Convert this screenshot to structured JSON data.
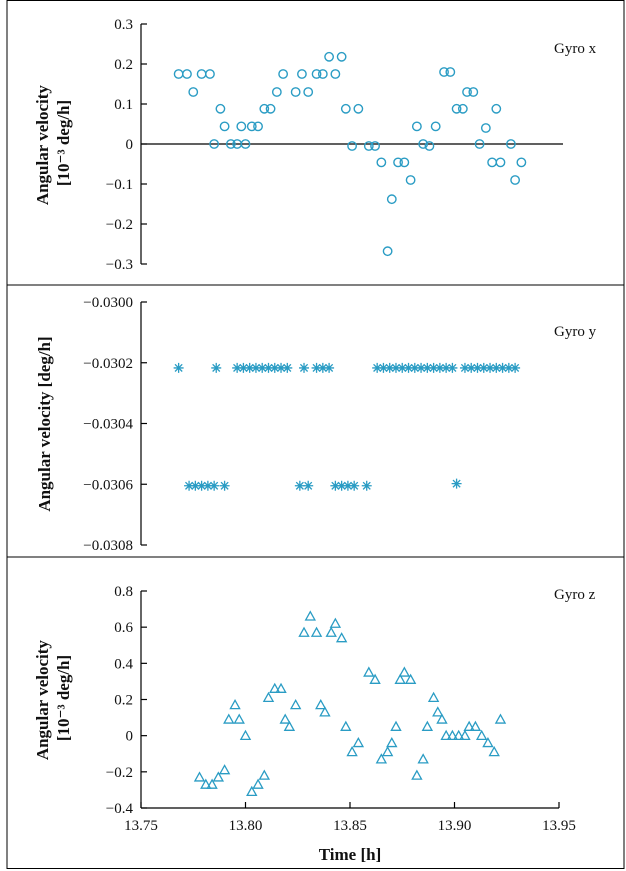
{
  "marker_color": "#2a9cc4",
  "chart_data": [
    {
      "type": "scatter",
      "panel_name": "Gyro x",
      "ylabel_lines": [
        "Angular velocity",
        "[10⁻³ deg/h]"
      ],
      "ylim": [
        -0.3,
        0.3
      ],
      "yticks": [
        "0.3",
        "0.2",
        "0.1",
        "0",
        "−0.1",
        "−0.2",
        "−0.3"
      ],
      "yticks_values": [
        0.3,
        0.2,
        0.1,
        0,
        -0.1,
        -0.2,
        -0.3
      ],
      "xlim": [
        13.75,
        13.95
      ],
      "zero_line": true,
      "marker": "circle",
      "points": [
        [
          13.768,
          0.175
        ],
        [
          13.772,
          0.175
        ],
        [
          13.775,
          0.13
        ],
        [
          13.779,
          0.175
        ],
        [
          13.783,
          0.175
        ],
        [
          13.785,
          0.0
        ],
        [
          13.788,
          0.088
        ],
        [
          13.79,
          0.044
        ],
        [
          13.793,
          0.0
        ],
        [
          13.796,
          0.0
        ],
        [
          13.798,
          0.044
        ],
        [
          13.8,
          0.0
        ],
        [
          13.803,
          0.044
        ],
        [
          13.806,
          0.044
        ],
        [
          13.809,
          0.088
        ],
        [
          13.812,
          0.088
        ],
        [
          13.815,
          0.13
        ],
        [
          13.818,
          0.175
        ],
        [
          13.824,
          0.13
        ],
        [
          13.827,
          0.175
        ],
        [
          13.83,
          0.13
        ],
        [
          13.834,
          0.175
        ],
        [
          13.837,
          0.175
        ],
        [
          13.84,
          0.218
        ],
        [
          13.843,
          0.175
        ],
        [
          13.846,
          0.218
        ],
        [
          13.848,
          0.088
        ],
        [
          13.851,
          -0.005
        ],
        [
          13.854,
          0.088
        ],
        [
          13.859,
          -0.005
        ],
        [
          13.862,
          -0.005
        ],
        [
          13.865,
          -0.046
        ],
        [
          13.868,
          -0.268
        ],
        [
          13.87,
          -0.138
        ],
        [
          13.873,
          -0.046
        ],
        [
          13.876,
          -0.046
        ],
        [
          13.879,
          -0.09
        ],
        [
          13.882,
          0.044
        ],
        [
          13.885,
          0.0
        ],
        [
          13.888,
          -0.005
        ],
        [
          13.891,
          0.044
        ],
        [
          13.895,
          0.18
        ],
        [
          13.898,
          0.18
        ],
        [
          13.901,
          0.088
        ],
        [
          13.904,
          0.088
        ],
        [
          13.906,
          0.13
        ],
        [
          13.909,
          0.13
        ],
        [
          13.912,
          0.0
        ],
        [
          13.915,
          0.04
        ],
        [
          13.918,
          -0.046
        ],
        [
          13.92,
          0.088
        ],
        [
          13.922,
          -0.046
        ],
        [
          13.927,
          0.0
        ],
        [
          13.929,
          -0.09
        ],
        [
          13.932,
          -0.046
        ]
      ]
    },
    {
      "type": "scatter",
      "panel_name": "Gyro y",
      "ylabel_lines": [
        "Angular velocity [deg/h]"
      ],
      "ylim": [
        -0.0308,
        -0.03
      ],
      "yticks": [
        "−0.0300",
        "−0.0302",
        "−0.0304",
        "−0.0306",
        "−0.0308"
      ],
      "yticks_values": [
        -0.03,
        -0.0302,
        -0.0304,
        -0.0306,
        -0.0308
      ],
      "xlim": [
        13.75,
        13.95
      ],
      "marker": "asterisk",
      "points": [
        [
          13.768,
          -0.030217
        ],
        [
          13.786,
          -0.030217
        ],
        [
          13.796,
          -0.030217
        ],
        [
          13.799,
          -0.030217
        ],
        [
          13.802,
          -0.030217
        ],
        [
          13.805,
          -0.030217
        ],
        [
          13.808,
          -0.030217
        ],
        [
          13.811,
          -0.030217
        ],
        [
          13.814,
          -0.030217
        ],
        [
          13.817,
          -0.030217
        ],
        [
          13.82,
          -0.030217
        ],
        [
          13.828,
          -0.030217
        ],
        [
          13.834,
          -0.030217
        ],
        [
          13.837,
          -0.030217
        ],
        [
          13.84,
          -0.030217
        ],
        [
          13.863,
          -0.030217
        ],
        [
          13.866,
          -0.030217
        ],
        [
          13.869,
          -0.030217
        ],
        [
          13.872,
          -0.030217
        ],
        [
          13.875,
          -0.030217
        ],
        [
          13.878,
          -0.030217
        ],
        [
          13.881,
          -0.030217
        ],
        [
          13.884,
          -0.030217
        ],
        [
          13.887,
          -0.030217
        ],
        [
          13.89,
          -0.030217
        ],
        [
          13.893,
          -0.030217
        ],
        [
          13.896,
          -0.030217
        ],
        [
          13.899,
          -0.030217
        ],
        [
          13.905,
          -0.030217
        ],
        [
          13.908,
          -0.030217
        ],
        [
          13.911,
          -0.030217
        ],
        [
          13.914,
          -0.030217
        ],
        [
          13.917,
          -0.030217
        ],
        [
          13.92,
          -0.030217
        ],
        [
          13.923,
          -0.030217
        ],
        [
          13.926,
          -0.030217
        ],
        [
          13.929,
          -0.030217
        ],
        [
          13.773,
          -0.030605
        ],
        [
          13.776,
          -0.030605
        ],
        [
          13.779,
          -0.030605
        ],
        [
          13.782,
          -0.030605
        ],
        [
          13.785,
          -0.030605
        ],
        [
          13.79,
          -0.030605
        ],
        [
          13.826,
          -0.030605
        ],
        [
          13.83,
          -0.030605
        ],
        [
          13.843,
          -0.030605
        ],
        [
          13.846,
          -0.030605
        ],
        [
          13.849,
          -0.030605
        ],
        [
          13.852,
          -0.030605
        ],
        [
          13.858,
          -0.030605
        ],
        [
          13.901,
          -0.030598
        ]
      ]
    },
    {
      "type": "scatter",
      "panel_name": "Gyro z",
      "ylabel_lines": [
        "Angular velocity",
        "[10⁻³ deg/h]"
      ],
      "ylim": [
        -0.4,
        0.8
      ],
      "yticks": [
        "0.8",
        "0.6",
        "0.4",
        "0.2",
        "0",
        "−0.2",
        "−0.4"
      ],
      "yticks_values": [
        0.8,
        0.6,
        0.4,
        0.2,
        0,
        -0.2,
        -0.4
      ],
      "xlim": [
        13.75,
        13.95
      ],
      "xticks": [
        "13.75",
        "13.80",
        "13.85",
        "13.90",
        "13.95"
      ],
      "xticks_values": [
        13.75,
        13.8,
        13.85,
        13.9,
        13.95
      ],
      "xlabel": "Time [h]",
      "marker": "triangle",
      "points": [
        [
          13.778,
          -0.23
        ],
        [
          13.781,
          -0.27
        ],
        [
          13.784,
          -0.27
        ],
        [
          13.787,
          -0.23
        ],
        [
          13.79,
          -0.19
        ],
        [
          13.792,
          0.09
        ],
        [
          13.795,
          0.17
        ],
        [
          13.797,
          0.09
        ],
        [
          13.8,
          0.0
        ],
        [
          13.803,
          -0.31
        ],
        [
          13.806,
          -0.27
        ],
        [
          13.809,
          -0.22
        ],
        [
          13.811,
          0.21
        ],
        [
          13.814,
          0.26
        ],
        [
          13.817,
          0.26
        ],
        [
          13.819,
          0.09
        ],
        [
          13.821,
          0.05
        ],
        [
          13.824,
          0.17
        ],
        [
          13.828,
          0.57
        ],
        [
          13.831,
          0.66
        ],
        [
          13.834,
          0.57
        ],
        [
          13.836,
          0.17
        ],
        [
          13.838,
          0.13
        ],
        [
          13.841,
          0.57
        ],
        [
          13.843,
          0.62
        ],
        [
          13.846,
          0.54
        ],
        [
          13.848,
          0.05
        ],
        [
          13.851,
          -0.09
        ],
        [
          13.854,
          -0.04
        ],
        [
          13.859,
          0.35
        ],
        [
          13.862,
          0.31
        ],
        [
          13.865,
          -0.13
        ],
        [
          13.868,
          -0.09
        ],
        [
          13.87,
          -0.04
        ],
        [
          13.872,
          0.05
        ],
        [
          13.874,
          0.31
        ],
        [
          13.876,
          0.35
        ],
        [
          13.879,
          0.31
        ],
        [
          13.882,
          -0.22
        ],
        [
          13.885,
          -0.13
        ],
        [
          13.887,
          0.05
        ],
        [
          13.89,
          0.21
        ],
        [
          13.892,
          0.13
        ],
        [
          13.894,
          0.09
        ],
        [
          13.896,
          0.0
        ],
        [
          13.899,
          0.0
        ],
        [
          13.902,
          0.0
        ],
        [
          13.905,
          0.0
        ],
        [
          13.907,
          0.05
        ],
        [
          13.91,
          0.05
        ],
        [
          13.913,
          0.0
        ],
        [
          13.916,
          -0.04
        ],
        [
          13.919,
          -0.09
        ],
        [
          13.922,
          0.09
        ]
      ]
    }
  ]
}
